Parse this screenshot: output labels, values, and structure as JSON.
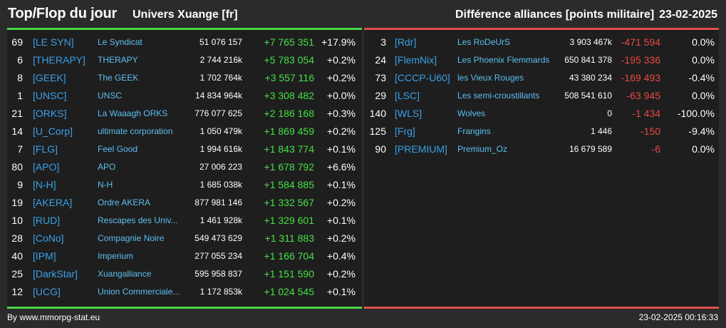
{
  "header": {
    "title": "Top/Flop du jour",
    "subtitle": "Univers Xuange [fr]",
    "right_title": "Différence alliances [points militaire]",
    "date": "23-02-2025"
  },
  "top": [
    {
      "rank": "69",
      "tag": "[LE SYN]",
      "name": "Le Syndicat",
      "points": "51 076 157",
      "diff": "+7 765 351",
      "pct": "+17.9%"
    },
    {
      "rank": "6",
      "tag": "[THERAPY]",
      "name": "THERAPY",
      "points": "2 744 216k",
      "diff": "+5 783 054",
      "pct": "+0.2%"
    },
    {
      "rank": "8",
      "tag": "[GEEK]",
      "name": "The GEEK",
      "points": "1 702 764k",
      "diff": "+3 557 116",
      "pct": "+0.2%"
    },
    {
      "rank": "1",
      "tag": "[UNSC]",
      "name": "UNSC",
      "points": "14 834 964k",
      "diff": "+3 308 482",
      "pct": "+0.0%"
    },
    {
      "rank": "21",
      "tag": "[ORKS]",
      "name": "La Waaagh ORKS",
      "points": "776 077 625",
      "diff": "+2 186 168",
      "pct": "+0.3%"
    },
    {
      "rank": "14",
      "tag": "[U_Corp]",
      "name": "ultimate corporation",
      "points": "1 050 479k",
      "diff": "+1 869 459",
      "pct": "+0.2%"
    },
    {
      "rank": "7",
      "tag": "[FLG]",
      "name": "Feel Good",
      "points": "1 994 616k",
      "diff": "+1 843 774",
      "pct": "+0.1%"
    },
    {
      "rank": "80",
      "tag": "[APO]",
      "name": "APO",
      "points": "27 006 223",
      "diff": "+1 678 792",
      "pct": "+6.6%"
    },
    {
      "rank": "9",
      "tag": "[N-H]",
      "name": "N-H",
      "points": "1 685 038k",
      "diff": "+1 584 885",
      "pct": "+0.1%"
    },
    {
      "rank": "19",
      "tag": "[AKERA]",
      "name": "Ordre AKERA",
      "points": "877 981 146",
      "diff": "+1 332 567",
      "pct": "+0.2%"
    },
    {
      "rank": "10",
      "tag": "[RUD]",
      "name": "Rescapes des Univ...",
      "points": "1 461 928k",
      "diff": "+1 329 601",
      "pct": "+0.1%"
    },
    {
      "rank": "28",
      "tag": "[CoNo]",
      "name": "Compagnie Noire",
      "points": "549 473 629",
      "diff": "+1 311 883",
      "pct": "+0.2%"
    },
    {
      "rank": "40",
      "tag": "[IPM]",
      "name": "Imperium",
      "points": "277 055 234",
      "diff": "+1 166 704",
      "pct": "+0.4%"
    },
    {
      "rank": "25",
      "tag": "[DarkStar]",
      "name": "Xuangalliance",
      "points": "595 958 837",
      "diff": "+1 151 590",
      "pct": "+0.2%"
    },
    {
      "rank": "12",
      "tag": "[UCG]",
      "name": "Union Commerciale...",
      "points": "1 172 853k",
      "diff": "+1 024 545",
      "pct": "+0.1%"
    }
  ],
  "flop": [
    {
      "rank": "3",
      "tag": "[Rdr]",
      "name": "Les RoDeUrS",
      "points": "3 903 467k",
      "diff": "-471 594",
      "pct": "0.0%"
    },
    {
      "rank": "24",
      "tag": "[FlemNix]",
      "name": "Les Phoenix Flemmards",
      "points": "650 841 378",
      "diff": "-195 336",
      "pct": "0.0%"
    },
    {
      "rank": "73",
      "tag": "[CCCP-U60]",
      "name": "les Vieux Rouges",
      "points": "43 380 234",
      "diff": "-169 493",
      "pct": "-0.4%"
    },
    {
      "rank": "29",
      "tag": "[LSC]",
      "name": "Les semi-croustillants",
      "points": "508 541 610",
      "diff": "-63 945",
      "pct": "0.0%"
    },
    {
      "rank": "140",
      "tag": "[WLS]",
      "name": "Wolves",
      "points": "0",
      "diff": "-1 434",
      "pct": "-100.0%"
    },
    {
      "rank": "125",
      "tag": "[Frg]",
      "name": "Frangins",
      "points": "1 446",
      "diff": "-150",
      "pct": "-9.4%"
    },
    {
      "rank": "90",
      "tag": "[PREMIUM]",
      "name": "Premium_Oz",
      "points": "16 679 589",
      "diff": "-6",
      "pct": "0.0%"
    }
  ],
  "footer": {
    "source": "By www.mmorpg-stat.eu",
    "timestamp": "23-02-2025 00:16:33"
  },
  "colors": {
    "top_accent": "#46d646",
    "flop_accent": "#e0504a",
    "tag": "#3aa0e8",
    "name": "#5cc0f0"
  }
}
